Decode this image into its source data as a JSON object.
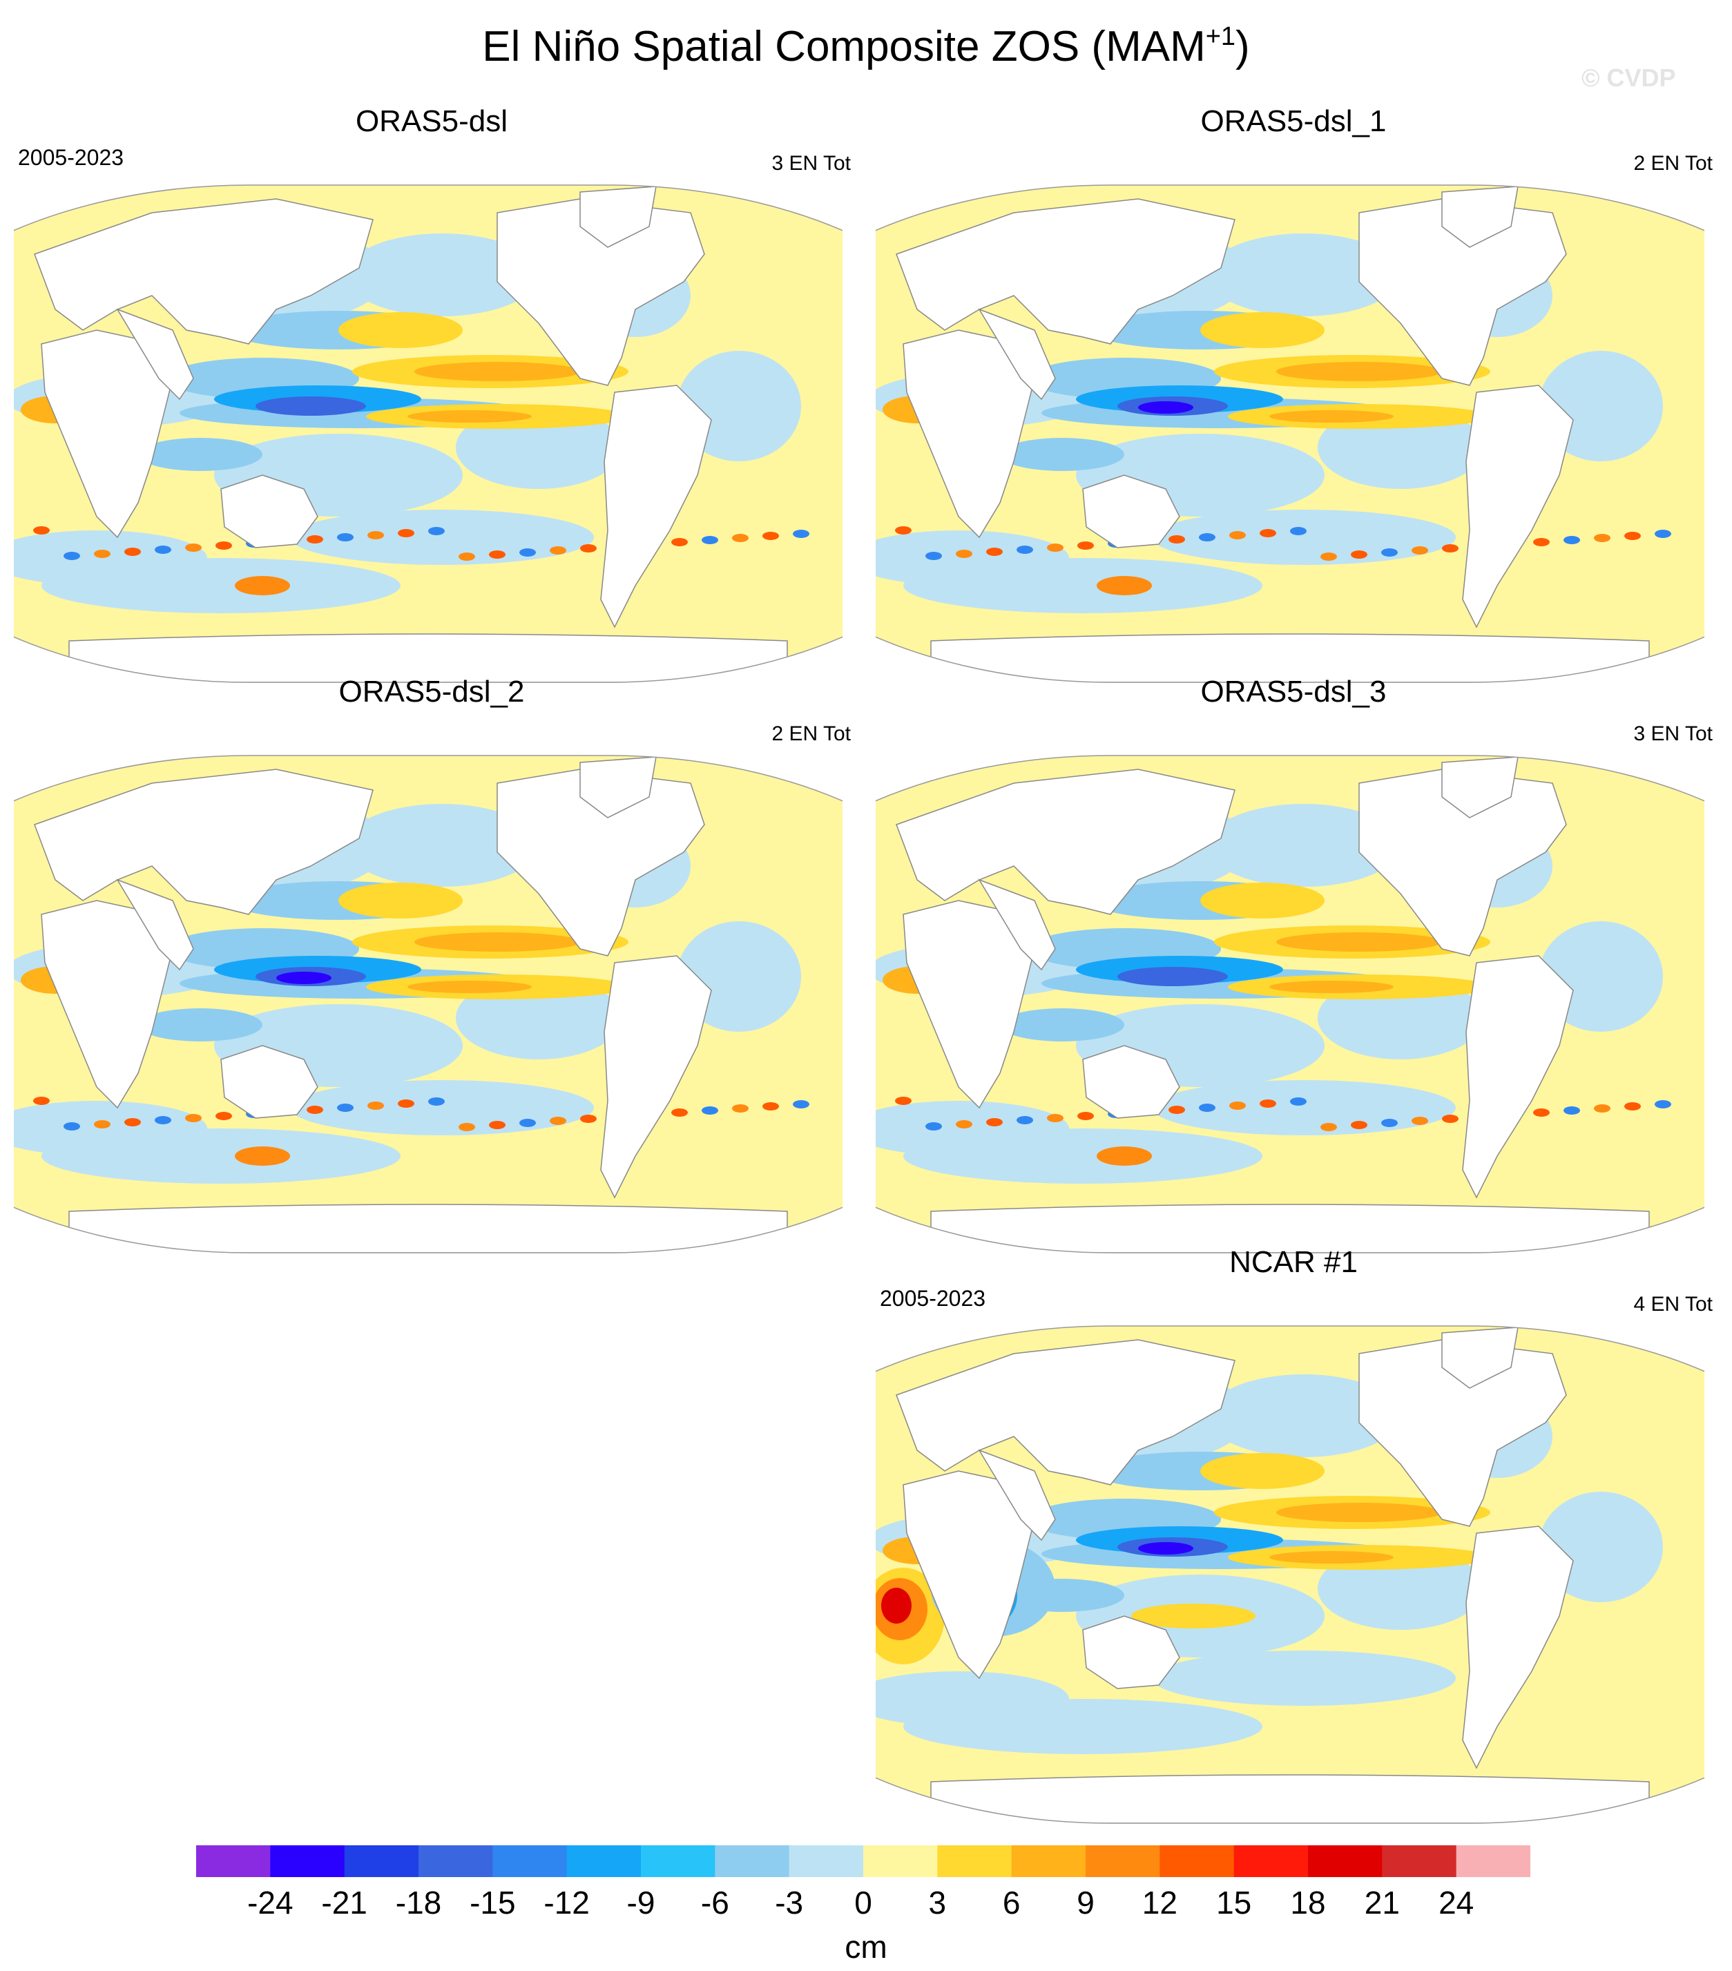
{
  "figure": {
    "title_main": "El Niño Spatial Composite ZOS (MAM",
    "title_sup": "+1",
    "title_end": ")",
    "watermark": "© CVDP"
  },
  "colors": {
    "ocean_base": "#fff6a0",
    "land": "#ffffff",
    "coast": "#888888"
  },
  "panels": [
    {
      "id": "p1",
      "title": "ORAS5-dsl",
      "period": "2005-2023",
      "count": "3 EN Tot"
    },
    {
      "id": "p2",
      "title": "ORAS5-dsl_1",
      "period": "",
      "count": "2 EN Tot"
    },
    {
      "id": "p3",
      "title": "ORAS5-dsl_2",
      "period": "",
      "count": "2 EN Tot"
    },
    {
      "id": "p4",
      "title": "ORAS5-dsl_3",
      "period": "",
      "count": "3 EN Tot"
    },
    {
      "id": "p5",
      "title": "NCAR #1",
      "period": "2005-2023",
      "count": "4 EN Tot"
    }
  ],
  "chart_data": {
    "type": "heatmap",
    "title": "El Niño Spatial Composite ZOS (MAM+1)",
    "units": "cm",
    "levels": [
      -24,
      -21,
      -18,
      -15,
      -12,
      -9,
      -6,
      -3,
      0,
      3,
      6,
      9,
      12,
      15,
      18,
      21,
      24
    ],
    "level_labels": [
      "-24",
      "-21",
      "-18",
      "-15",
      "-12",
      "-9",
      "-6",
      "-3",
      "0",
      "3",
      "6",
      "9",
      "12",
      "15",
      "18",
      "21",
      "24"
    ],
    "colorbar_colors": [
      "#8a2be2",
      "#2a00ff",
      "#1e40e6",
      "#3a66e0",
      "#2f86f0",
      "#16a6f8",
      "#28c3f8",
      "#8ecdf0",
      "#bde2f4",
      "#fff6a0",
      "#ffd830",
      "#ffb21a",
      "#ff8a10",
      "#ff5a00",
      "#ff1a0a",
      "#e00000",
      "#d42a2a",
      "#f9b0b4"
    ],
    "panels": [
      {
        "name": "ORAS5-dsl",
        "period": "2005-2023",
        "events": "3 EN Tot"
      },
      {
        "name": "ORAS5-dsl_1",
        "events": "2 EN Tot"
      },
      {
        "name": "ORAS5-dsl_2",
        "events": "2 EN Tot"
      },
      {
        "name": "ORAS5-dsl_3",
        "events": "3 EN Tot"
      },
      {
        "name": "NCAR #1",
        "period": "2005-2023",
        "events": "4 EN Tot"
      }
    ]
  }
}
